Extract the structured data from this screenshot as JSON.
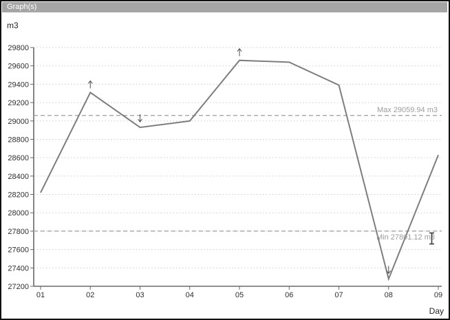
{
  "window": {
    "title": "Graph(s)"
  },
  "cursor": {
    "type": "text-ibeam"
  },
  "chart_data": {
    "type": "line",
    "title": "Graph(s)",
    "xlabel": "Day",
    "ylabel": "m3",
    "categories": [
      "01",
      "02",
      "03",
      "04",
      "05",
      "06",
      "07",
      "08",
      "09"
    ],
    "values": [
      28220,
      29310,
      28930,
      29000,
      29660,
      29640,
      29390,
      27280,
      28630
    ],
    "ylim": [
      27200,
      29800
    ],
    "ytick_step": 200,
    "grid": "horizontal-dotted",
    "legend": "none",
    "reference_lines": [
      {
        "name": "max",
        "value": 29059.94,
        "label": "Max 29059.94 m3",
        "style": "dashed"
      },
      {
        "name": "min",
        "value": 27801.12,
        "label": "Min 27801.12 m3",
        "style": "dashed"
      }
    ],
    "annotations": [
      {
        "category": "02",
        "direction": "up"
      },
      {
        "category": "03",
        "direction": "down"
      },
      {
        "category": "05",
        "direction": "up"
      },
      {
        "category": "08",
        "direction": "down"
      }
    ],
    "colors": {
      "series_line": "#7d7d7d",
      "gridline": "#cccccc",
      "axis": "#686868",
      "tick_text": "#2e2e2e",
      "reference_line": "#ababab",
      "reference_label": "#9c9c9c",
      "annotation_arrow": "#4d4d4d",
      "titlebar_bg": "#a5a5a5",
      "titlebar_text": "#ffffff",
      "window_border": "#111111",
      "background": "#ffffff"
    }
  }
}
